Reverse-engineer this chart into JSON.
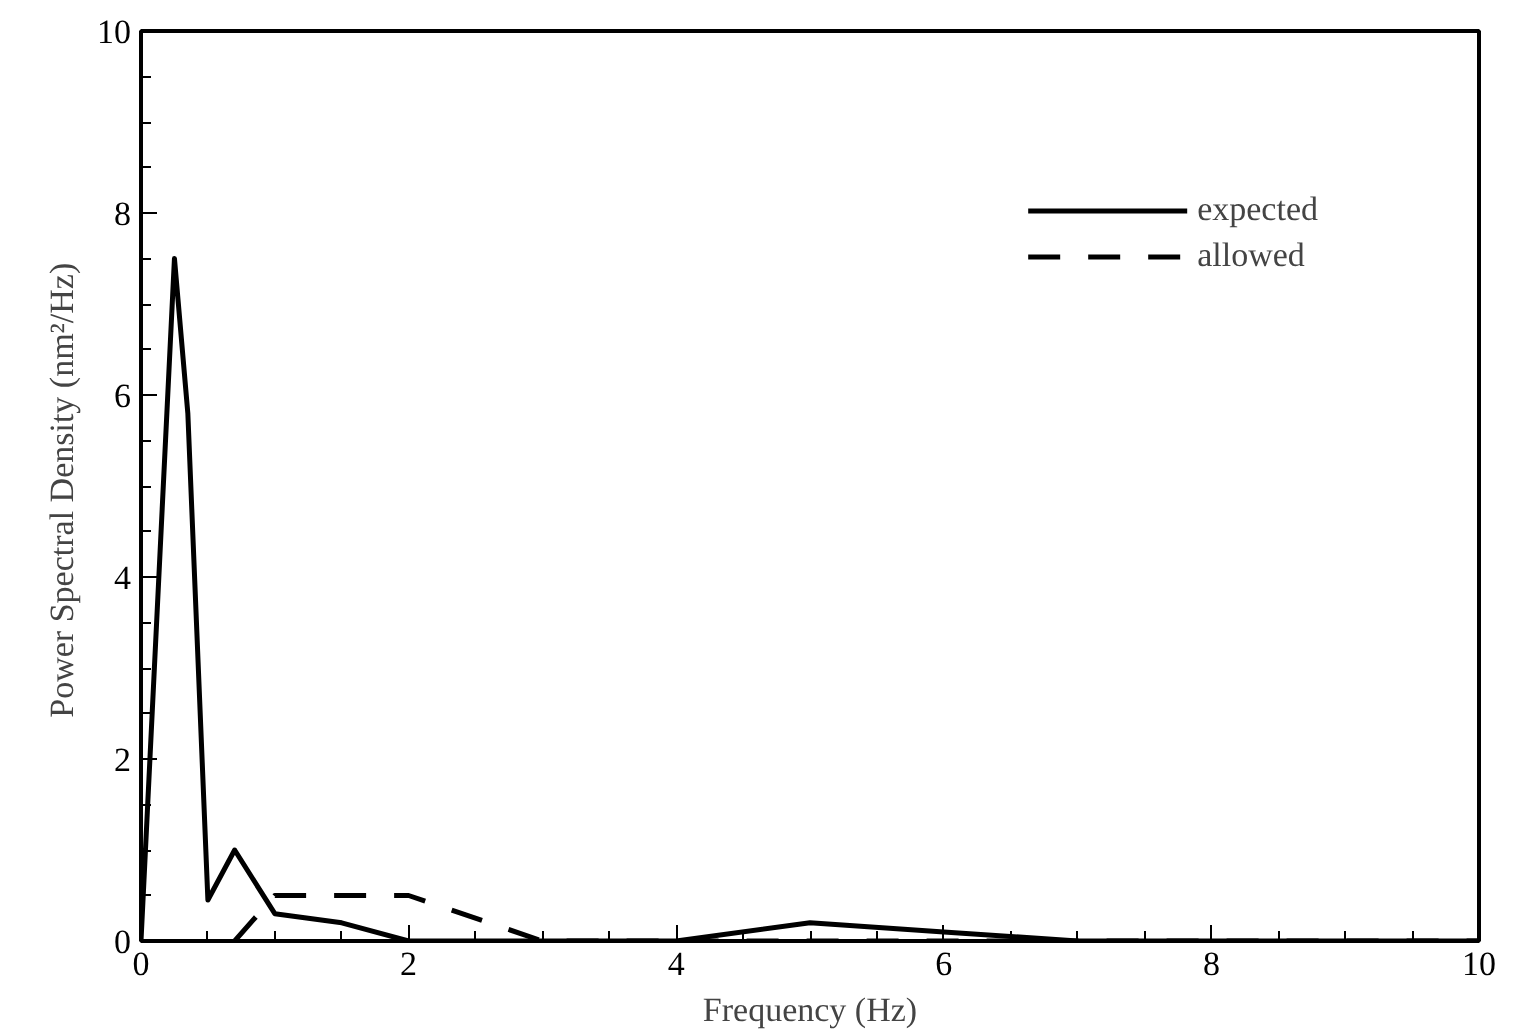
{
  "chart_data": {
    "type": "line",
    "xlabel": "Frequency (Hz)",
    "ylabel": "Power Spectral Density  (nm²/Hz)",
    "xlim": [
      0,
      10
    ],
    "ylim": [
      0,
      10
    ],
    "xticks": [
      0,
      2,
      4,
      6,
      8,
      10
    ],
    "yticks": [
      0,
      2,
      4,
      6,
      8,
      10
    ],
    "grid": false,
    "legend": "top right",
    "marker": "none",
    "series": [
      {
        "name": "expected",
        "color": "#000000",
        "line_style": "solid",
        "x": [
          0,
          0.25,
          0.35,
          0.5,
          0.7,
          1.0,
          1.5,
          2.0,
          4.0,
          5.0,
          6.0,
          7.0,
          10.0
        ],
        "values": [
          0,
          7.5,
          5.8,
          0.45,
          1.0,
          0.3,
          0.2,
          0,
          0,
          0.2,
          0.1,
          0,
          0
        ]
      },
      {
        "name": "allowed",
        "color": "#000000",
        "line_style": "dashed",
        "x": [
          0.7,
          1.0,
          2.0,
          3.0,
          10.0
        ],
        "values": [
          0,
          0.5,
          0.5,
          0,
          0
        ]
      }
    ]
  }
}
